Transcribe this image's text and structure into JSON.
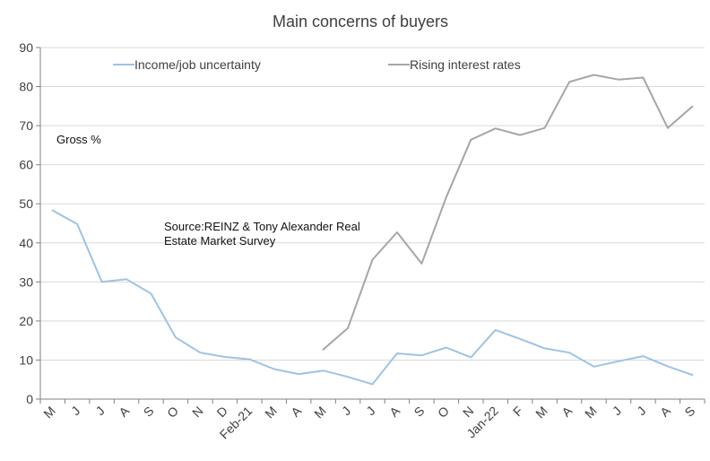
{
  "chart_data": {
    "type": "line",
    "title": "Main concerns of buyers",
    "ylabel": "Gross %",
    "xlabel": "",
    "source_lines": [
      "Source:REINZ & Tony Alexander Real",
      "Estate Market Survey"
    ],
    "categories": [
      "M",
      "J",
      "J",
      "A",
      "S",
      "O",
      "N",
      "D",
      "Feb-21",
      "M",
      "A",
      "M",
      "J",
      "J",
      "A",
      "S",
      "O",
      "N",
      "Jan-22",
      "F",
      "M",
      "A",
      "M",
      "J",
      "J",
      "A",
      "S"
    ],
    "y_ticks": [
      0,
      10,
      20,
      30,
      40,
      50,
      60,
      70,
      80,
      90
    ],
    "ylim": [
      0,
      90
    ],
    "grid": true,
    "legend_position": "top",
    "series": [
      {
        "name": "Income/job uncertainty",
        "color": "#9dc3e6",
        "values": [
          48.3,
          44.8,
          30.0,
          30.7,
          27.0,
          15.8,
          11.9,
          10.8,
          10.2,
          7.7,
          6.4,
          7.3,
          5.7,
          3.8,
          11.7,
          11.2,
          13.2,
          10.7,
          17.7,
          15.4,
          13.0,
          11.9,
          8.3,
          9.7,
          11.0,
          8.4,
          6.2
        ]
      },
      {
        "name": "Rising interest rates",
        "color": "#a6a6a6",
        "values": [
          null,
          null,
          null,
          null,
          null,
          null,
          null,
          null,
          null,
          null,
          null,
          12.7,
          18.2,
          35.7,
          42.7,
          34.7,
          51.7,
          66.4,
          69.3,
          67.6,
          69.4,
          81.2,
          83.0,
          81.8,
          82.3,
          69.4,
          74.9
        ]
      }
    ]
  }
}
